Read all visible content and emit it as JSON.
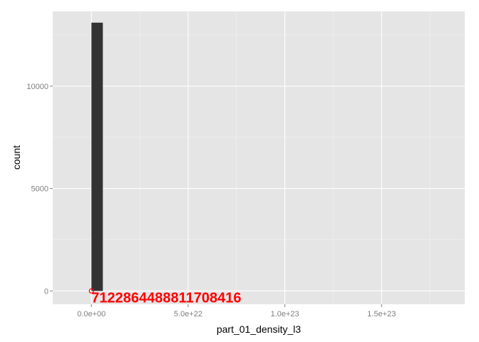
{
  "chart_data": {
    "type": "bar",
    "title": "",
    "xlabel": "part_01_density_l3",
    "ylabel": "count",
    "xlim": [
      -2e+22,
      1.93e+23
    ],
    "ylim": [
      -650,
      13650
    ],
    "x_breaks": [
      0,
      5e+22,
      1e+23,
      1.5e+23
    ],
    "x_tick_labels": [
      "0.0e+00",
      "5.0e+22",
      "1.0e+23",
      "1.5e+23"
    ],
    "x_minor_breaks": [
      -2.5e+22,
      2.5e+22,
      7.5e+22,
      1.25e+23,
      1.75e+23
    ],
    "y_breaks": [
      0,
      5000,
      10000
    ],
    "y_tick_labels": [
      "0",
      "5000",
      "10000"
    ],
    "y_minor_breaks": [
      2500,
      7500,
      12500
    ],
    "bins": [
      {
        "x_start": 0,
        "x_end": 5.9e+21,
        "count": 13100
      }
    ],
    "grid": true,
    "colors": {
      "panel_background": "#e5e5e5",
      "grid_major": "#ffffff",
      "grid_minor": "#f2f2f2",
      "bar_fill": "#333333",
      "annotation": "#ff0000"
    },
    "annotations": [
      {
        "text": "7122864488811708416",
        "x": 0,
        "y": 0,
        "color": "#ff0000"
      }
    ]
  }
}
